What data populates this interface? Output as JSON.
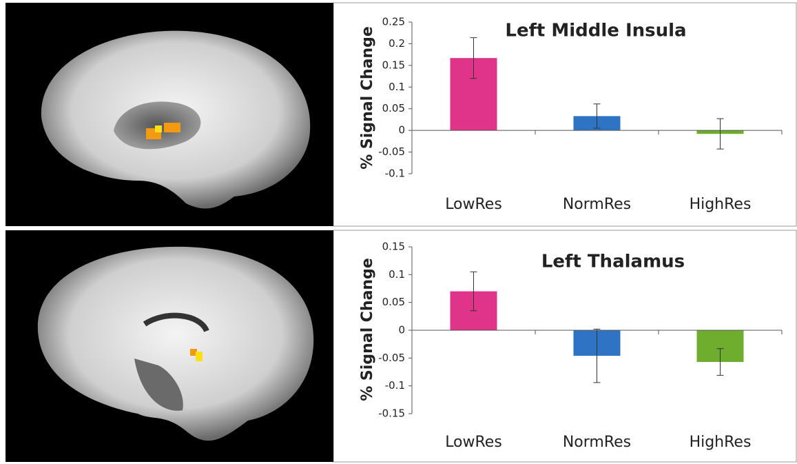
{
  "chart_data": [
    {
      "type": "bar",
      "title": "Left Middle Insula",
      "y_label": "% Signal Change",
      "categories": [
        "LowRes",
        "NormRes",
        "HighRes"
      ],
      "values": [
        0.167,
        0.033,
        -0.008
      ],
      "errors": [
        0.047,
        0.028,
        0.035
      ],
      "colors": [
        "#e0338a",
        "#2f74c4",
        "#6fad2e"
      ],
      "ylim": [
        -0.1,
        0.25
      ],
      "yticks": [
        -0.1,
        -0.05,
        0,
        0.05,
        0.1,
        0.15,
        0.2,
        0.25
      ]
    },
    {
      "type": "bar",
      "title": "Left Thalamus",
      "y_label": "% Signal Change",
      "categories": [
        "LowRes",
        "NormRes",
        "HighRes"
      ],
      "values": [
        0.07,
        -0.046,
        -0.057
      ],
      "errors": [
        0.035,
        0.048,
        0.024
      ],
      "colors": [
        "#e0338a",
        "#2f74c4",
        "#6fad2e"
      ],
      "ylim": [
        -0.15,
        0.15
      ],
      "yticks": [
        -0.15,
        -0.1,
        -0.05,
        0,
        0.05,
        0.1,
        0.15
      ]
    }
  ]
}
